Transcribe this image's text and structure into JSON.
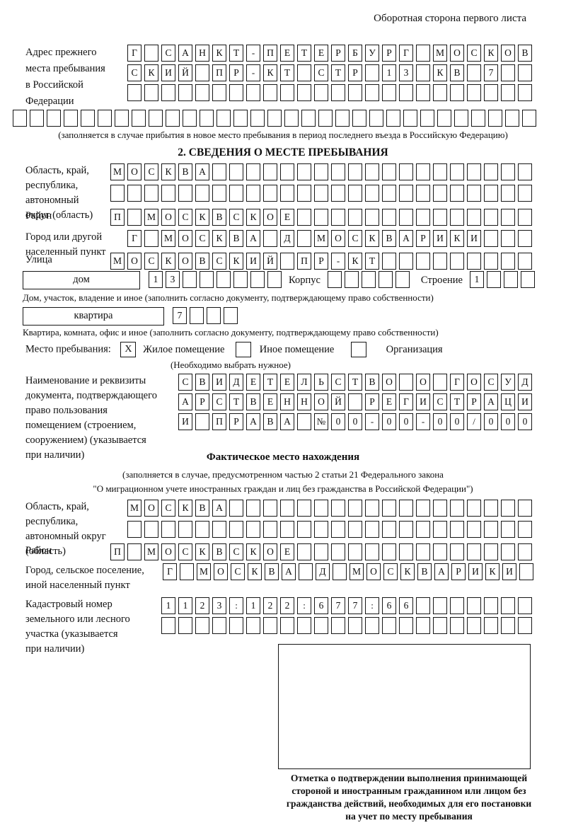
{
  "colors": {
    "ink": "#101010",
    "paper": "#ffffff"
  },
  "header": {
    "note": "Оборотная сторона первого листа"
  },
  "prev_address": {
    "label_lines": [
      "Адрес прежнего",
      "места пребывания",
      "в Российской",
      "Федерации"
    ],
    "rows": [
      {
        "len": 24,
        "text": "Г САНКТ-ПЕТЕРБУРГ МОСКОВ"
      },
      {
        "len": 24,
        "text": "СКИЙ ПР-КТ СТР 13 КВ 7"
      },
      {
        "len": 24,
        "text": ""
      }
    ],
    "full_row": {
      "len": 31,
      "text": ""
    },
    "note": "(заполняется в случае прибытия в новое место пребывания в период последнего въезда в Российскую Федерацию)"
  },
  "section2": {
    "heading": "2. СВЕДЕНИЯ О МЕСТЕ ПРЕБЫВАНИЯ",
    "region": {
      "label_lines": [
        "Область, край,",
        "республика,",
        "автономный",
        "округ (область)"
      ],
      "rows": [
        {
          "len": 25,
          "text": "МОСКВА"
        },
        {
          "len": 25,
          "text": ""
        }
      ]
    },
    "district": {
      "label_lines": [
        "Район"
      ],
      "row": {
        "len": 25,
        "text": "П МОСКВСКОЕ"
      }
    },
    "city": {
      "label_lines": [
        "Город или другой",
        "населенный пункт"
      ],
      "row": {
        "len": 24,
        "text": "Г МОСКВА Д МОСКВАРИКИ"
      }
    },
    "street": {
      "label_lines": [
        "Улица"
      ],
      "row": {
        "len": 25,
        "text": "МОСКОВСКИЙ ПР-КТ"
      }
    },
    "house_line": {
      "house_label": "дом",
      "house_cells": {
        "len": 8,
        "text": "13"
      },
      "korpus_label": "Корпус",
      "korpus_cells": {
        "len": 5,
        "text": ""
      },
      "stroenie_label": "Строение",
      "stroenie_cells": {
        "len": 4,
        "text": "1"
      }
    },
    "house_note": "Дом, участок, владение и иное (заполнить согласно документу, подтверждающему право собственности)",
    "apartment_line": {
      "label": "квартира",
      "cells": {
        "len": 4,
        "text": "7"
      }
    },
    "apartment_note": "Квартира, комната, офис и иное (заполнить согласно документу, подтверждающему право собственности)",
    "stay_type": {
      "label": "Место пребывания:",
      "options": [
        {
          "mark": "X",
          "label": "Жилое помещение"
        },
        {
          "mark": "",
          "label": "Иное помещение"
        },
        {
          "mark": "",
          "label": "Организация"
        }
      ],
      "note": "(Необходимо выбрать нужное)"
    },
    "document": {
      "label_lines": [
        "Наименование и реквизиты",
        "документа, подтверждающего",
        "право пользования",
        "помещением (строением,",
        "сооружением) (указывается",
        "при наличии)"
      ],
      "rows": [
        {
          "len": 21,
          "text": "СВИДЕТЕЛЬСТВО О ГОСУД"
        },
        {
          "len": 21,
          "text": "АРСТВЕННОЙ РЕГИСТРАЦИ"
        },
        {
          "len": 21,
          "text": "И ПРАВА №00-00-00/000"
        }
      ]
    }
  },
  "actual_location": {
    "heading": "Фактическое место нахождения",
    "note_lines": [
      "(заполняется в случае, предусмотренном частью 2 статьи 21 Федерального закона",
      "\"О миграционном учете иностранных граждан и лиц без гражданства в Российской Федерации\")"
    ],
    "region": {
      "label_lines": [
        "Область, край,",
        "республика,",
        "автономный округ",
        "(область)"
      ],
      "rows": [
        {
          "len": 24,
          "text": "МОСКВА"
        },
        {
          "len": 24,
          "text": ""
        }
      ]
    },
    "district": {
      "label_lines": [
        "Район"
      ],
      "row": {
        "len": 25,
        "text": "П МОСКВСКОЕ"
      }
    },
    "city": {
      "label_lines": [
        "Город, сельское поселение,",
        "иной населенный пункт"
      ],
      "row": {
        "len": 22,
        "text": "Г МОСКВА Д МОСКВАРИКИ"
      }
    },
    "cadastral": {
      "label_lines": [
        "Кадастровый номер",
        "земельного или лесного",
        "участка (указывается",
        "при наличии)"
      ],
      "rows": [
        {
          "len": 22,
          "text": "1123:122:677:66"
        },
        {
          "len": 22,
          "text": ""
        }
      ]
    }
  },
  "stamp": {
    "caption_lines": [
      "Отметка о подтверждении выполнения принимающей",
      "стороной и иностранным гражданином или лицом без",
      "гражданства действий, необходимых для его постановки",
      "на учет по месту пребывания"
    ]
  }
}
